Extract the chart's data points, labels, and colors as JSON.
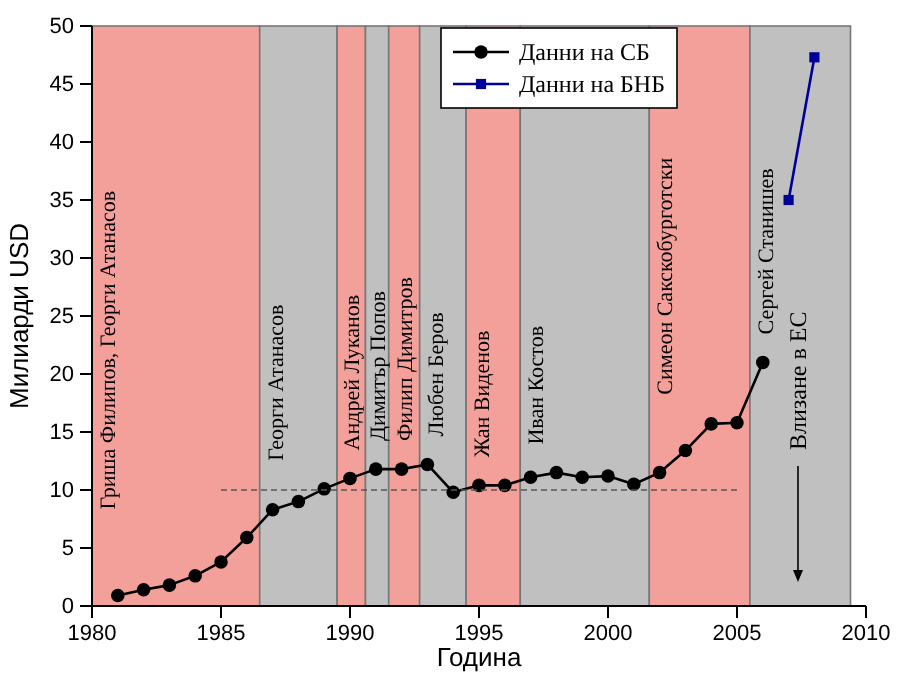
{
  "chart_data": {
    "type": "line",
    "xlabel": "Година",
    "ylabel": "Милиарди USD",
    "xlim": [
      1980,
      2010
    ],
    "xticks": [
      1980,
      1985,
      1990,
      1995,
      2000,
      2005,
      2010
    ],
    "ylim": [
      0,
      50
    ],
    "yticks": [
      0,
      5,
      10,
      15,
      20,
      25,
      30,
      35,
      40,
      45,
      50
    ],
    "legend": "top",
    "series": [
      {
        "name": "Данни на СБ",
        "color": "#000000",
        "marker": "circle",
        "x": [
          1981,
          1982,
          1983,
          1984,
          1985,
          1986,
          1987,
          1988,
          1989,
          1990,
          1991,
          1992,
          1993,
          1994,
          1995,
          1996,
          1997,
          1998,
          1999,
          2000,
          2001,
          2002,
          2003,
          2004,
          2005,
          2006
        ],
        "values": [
          0.9,
          1.4,
          1.8,
          2.6,
          3.8,
          5.9,
          8.3,
          9.0,
          10.1,
          11.0,
          11.8,
          11.8,
          12.2,
          9.8,
          10.4,
          10.4,
          11.1,
          11.5,
          11.1,
          11.2,
          10.5,
          11.5,
          13.4,
          15.7,
          15.8,
          21.0
        ]
      },
      {
        "name": "Данни на БНБ",
        "color": "#000099",
        "marker": "square",
        "x": [
          2007,
          2008
        ],
        "values": [
          35.0,
          47.3
        ]
      },
      {
        "type": "line",
        "color": "#555555",
        "marker": "none",
        "line_style": "dashed",
        "x": [
          1985,
          2005
        ],
        "values": [
          10,
          10
        ]
      }
    ],
    "bands": [
      {
        "axis": "x",
        "from": 1980,
        "to": 1986.5,
        "label": "Гриша Филипов, Георги Атанасов",
        "color": "#f4a09a"
      },
      {
        "axis": "x",
        "from": 1986.5,
        "to": 1989.5,
        "label": "Георги Атанасов",
        "color": "#c0c0c0"
      },
      {
        "axis": "x",
        "from": 1989.5,
        "to": 1990.6,
        "label": "Андрей Луканов",
        "color": "#f4a09a"
      },
      {
        "axis": "x",
        "from": 1990.6,
        "to": 1991.5,
        "label": "Димитър Попов",
        "color": "#c0c0c0"
      },
      {
        "axis": "x",
        "from": 1991.5,
        "to": 1992.7,
        "label": "Филип Димитров",
        "color": "#f4a09a"
      },
      {
        "axis": "x",
        "from": 1992.7,
        "to": 1994.5,
        "label": "Любен Беров",
        "color": "#c0c0c0"
      },
      {
        "axis": "x",
        "from": 1994.5,
        "to": 1996.6,
        "label": "Жан Виденов",
        "color": "#f4a09a"
      },
      {
        "axis": "x",
        "from": 1996.6,
        "to": 2001.6,
        "label": "Иван Костов",
        "color": "#c0c0c0"
      },
      {
        "axis": "x",
        "from": 2001.6,
        "to": 2005.5,
        "label": "Симеон Сакскобурготски",
        "color": "#f4a09a"
      },
      {
        "axis": "x",
        "from": 2005.5,
        "to": 2009.4,
        "label": "Сергей Станишев",
        "color": "#c0c0c0"
      }
    ],
    "annotations": [
      "Влизане в ЕС"
    ]
  }
}
